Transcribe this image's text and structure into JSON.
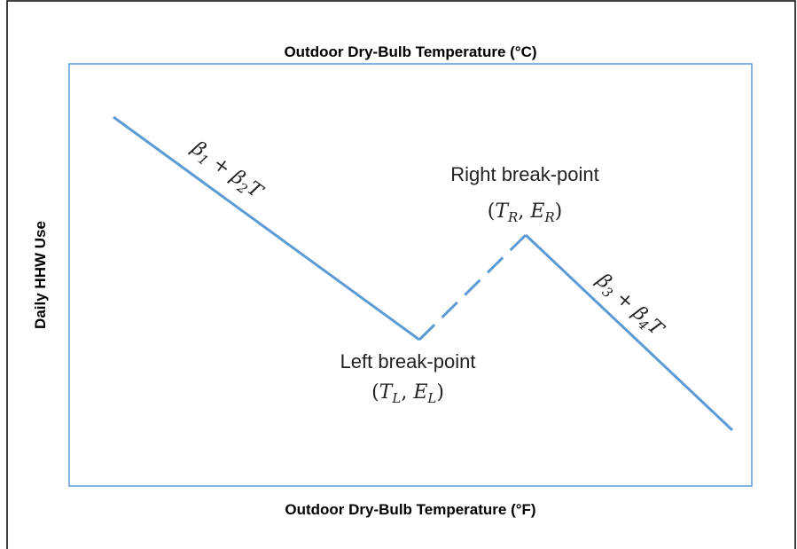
{
  "top_axis_title": "Outdoor Dry-Bulb Temperature (°C)",
  "bottom_axis_title": "Outdoor Dry-Bulb Temperature (°F)",
  "y_axis_title": "Daily HHW Use",
  "left_segment_label": [
    "β",
    "1",
    " + β",
    "2",
    "T"
  ],
  "right_segment_label": [
    "β",
    "3",
    " + β",
    "4",
    "T"
  ],
  "left_breakpoint": {
    "label": "Left break-point",
    "coord": [
      "(",
      "T",
      "L",
      ", ",
      "E",
      "L",
      ")"
    ]
  },
  "right_breakpoint": {
    "label": "Right break-point",
    "coord": [
      "(",
      "T",
      "R",
      ", ",
      "E",
      "R",
      ")"
    ]
  }
}
